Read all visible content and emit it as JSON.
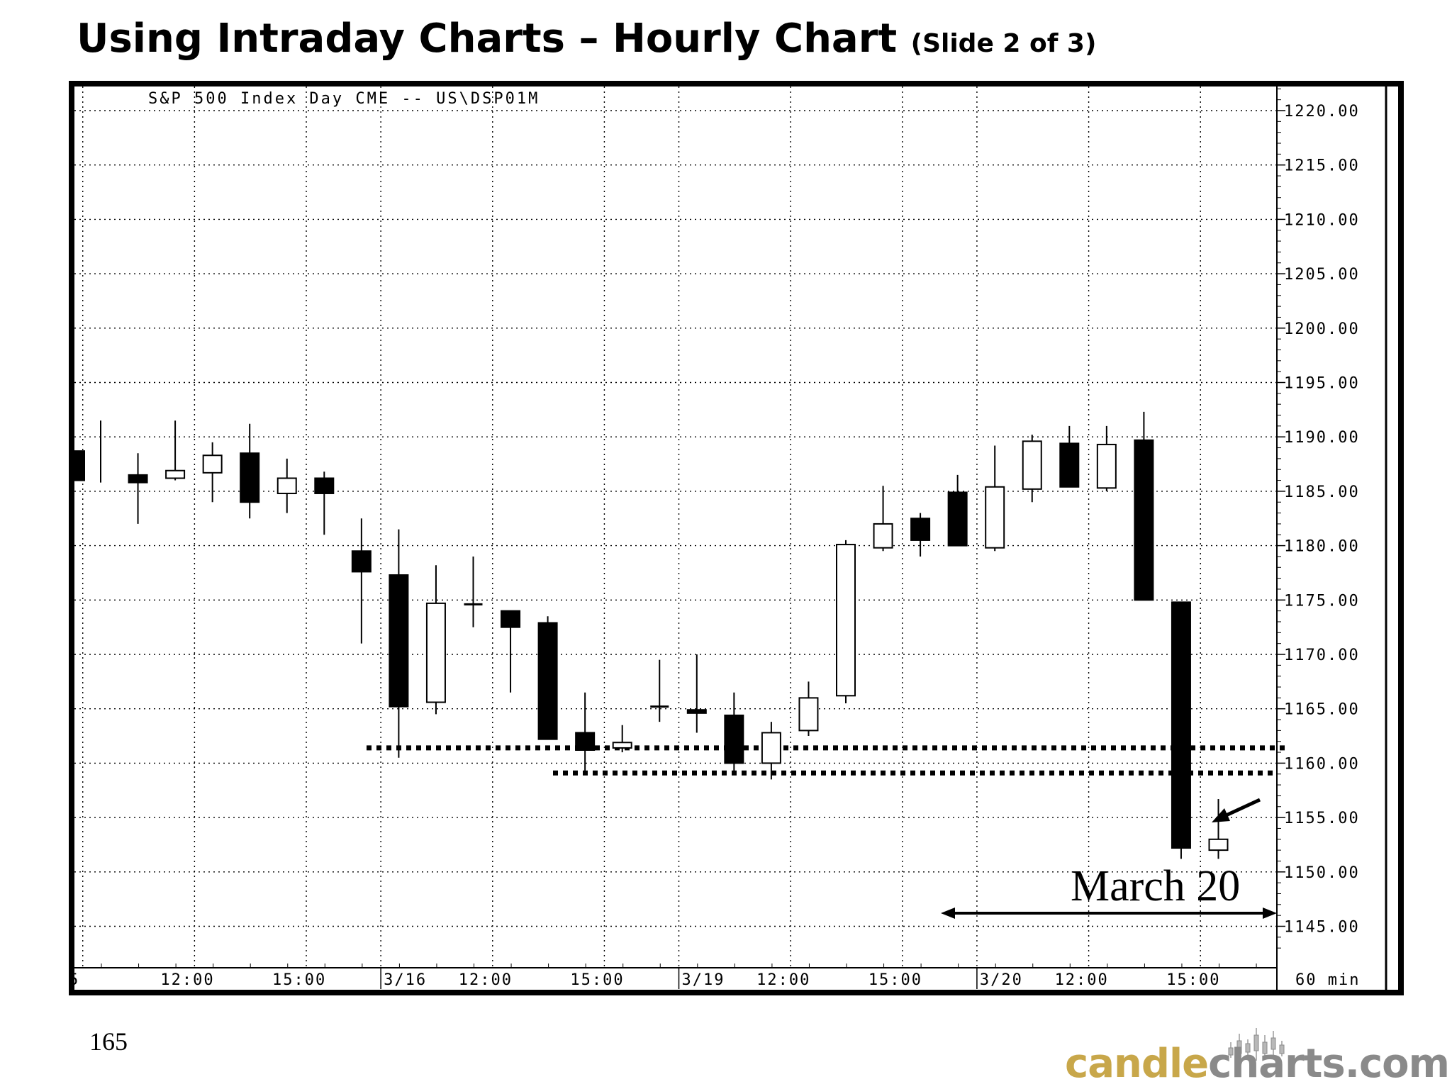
{
  "slide": {
    "title": "Using Intraday Charts – Hourly Chart",
    "subtitle": "(Slide 2 of 3)",
    "page_number": "165"
  },
  "brand": {
    "part1": "candle",
    "part2": "charts.com"
  },
  "chart_data": {
    "type": "candlestick",
    "header": "S&P 500 Index Day CME -- US\\DSP01M",
    "interval_label": "60 min",
    "annotation": "March 20",
    "ylim": [
      1142,
      1223
    ],
    "y_ticks": [
      1220,
      1215,
      1210,
      1205,
      1200,
      1195,
      1190,
      1185,
      1180,
      1175,
      1170,
      1165,
      1160,
      1155,
      1150,
      1145
    ],
    "y_tick_labels": [
      "1220.00",
      "1215.00",
      "1210.00",
      "1205.00",
      "1200.00",
      "1195.00",
      "1190.00",
      "1185.00",
      "1180.00",
      "1175.00",
      "1170.00",
      "1165.00",
      "1160.00",
      "1155.00",
      "1150.00",
      "1145.00"
    ],
    "x_tick_labels": [
      "5",
      "12:00",
      "15:00",
      "3/16",
      "12:00",
      "15:00",
      "3/19",
      "12:00",
      "15:00",
      "3/20",
      "12:00",
      "15:00"
    ],
    "candles": [
      {
        "o": 1188.7,
        "h": 1191.5,
        "l": 1185.8,
        "c": 1186.0
      },
      {
        "o": 1186.5,
        "h": 1188.5,
        "l": 1182.0,
        "c": 1185.8
      },
      {
        "o": 1186.2,
        "h": 1191.5,
        "l": 1186.0,
        "c": 1186.9
      },
      {
        "o": 1186.7,
        "h": 1189.5,
        "l": 1184.0,
        "c": 1188.3
      },
      {
        "o": 1188.5,
        "h": 1191.2,
        "l": 1182.5,
        "c": 1184.0
      },
      {
        "o": 1184.8,
        "h": 1188.0,
        "l": 1183.0,
        "c": 1186.2
      },
      {
        "o": 1186.2,
        "h": 1186.8,
        "l": 1181.0,
        "c": 1184.8
      },
      {
        "o": 1179.5,
        "h": 1182.5,
        "l": 1171.0,
        "c": 1177.6
      },
      {
        "o": 1177.3,
        "h": 1181.5,
        "l": 1160.5,
        "c": 1165.2
      },
      {
        "o": 1165.6,
        "h": 1178.2,
        "l": 1164.5,
        "c": 1174.7
      },
      {
        "o": 1174.6,
        "h": 1179.0,
        "l": 1172.5,
        "c": 1174.6
      },
      {
        "o": 1174.0,
        "h": 1174.0,
        "l": 1166.5,
        "c": 1172.5
      },
      {
        "o": 1172.9,
        "h": 1173.5,
        "l": 1162.2,
        "c": 1162.2
      },
      {
        "o": 1162.8,
        "h": 1166.5,
        "l": 1159.0,
        "c": 1161.2
      },
      {
        "o": 1161.4,
        "h": 1163.5,
        "l": 1161.0,
        "c": 1161.9
      },
      {
        "o": 1165.2,
        "h": 1169.5,
        "l": 1163.8,
        "c": 1165.2
      },
      {
        "o": 1164.9,
        "h": 1170.0,
        "l": 1162.8,
        "c": 1164.6
      },
      {
        "o": 1164.4,
        "h": 1166.5,
        "l": 1159.0,
        "c": 1160.0
      },
      {
        "o": 1160.0,
        "h": 1163.8,
        "l": 1158.5,
        "c": 1162.8
      },
      {
        "o": 1163.0,
        "h": 1167.5,
        "l": 1162.5,
        "c": 1166.0
      },
      {
        "o": 1166.2,
        "h": 1180.5,
        "l": 1165.5,
        "c": 1180.1
      },
      {
        "o": 1179.8,
        "h": 1185.5,
        "l": 1179.5,
        "c": 1182.0
      },
      {
        "o": 1182.5,
        "h": 1183.0,
        "l": 1179.0,
        "c": 1180.5
      },
      {
        "o": 1184.9,
        "h": 1186.5,
        "l": 1180.0,
        "c": 1180.0
      },
      {
        "o": 1179.8,
        "h": 1189.2,
        "l": 1179.5,
        "c": 1185.4
      },
      {
        "o": 1185.2,
        "h": 1190.2,
        "l": 1184.0,
        "c": 1189.6
      },
      {
        "o": 1189.4,
        "h": 1191.0,
        "l": 1185.4,
        "c": 1185.4
      },
      {
        "o": 1185.3,
        "h": 1191.0,
        "l": 1185.0,
        "c": 1189.3
      },
      {
        "o": 1189.7,
        "h": 1192.3,
        "l": 1175.0,
        "c": 1175.0
      },
      {
        "o": 1174.8,
        "h": 1174.8,
        "l": 1151.2,
        "c": 1152.2
      },
      {
        "o": 1152.0,
        "h": 1156.7,
        "l": 1151.2,
        "c": 1153.0
      }
    ],
    "support_lines": [
      1161.4,
      1159.1
    ],
    "colors": {
      "up_body": "#ffffff",
      "down_body": "#000000",
      "ink": "#000000",
      "grid": "#000000"
    }
  }
}
